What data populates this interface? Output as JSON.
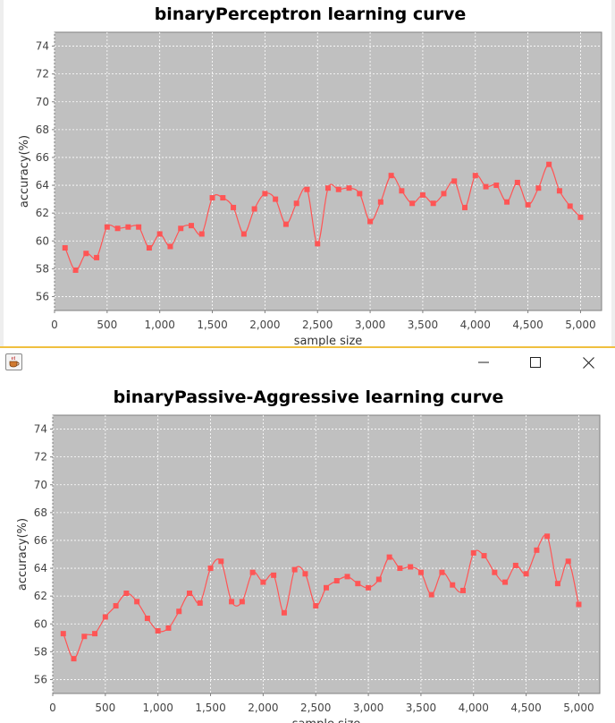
{
  "charts": [
    {
      "chart_data": {
        "type": "line",
        "title": "binaryPerceptron learning curve",
        "xlabel": "sample size",
        "ylabel": "accuracy(%)",
        "xlim": [
          0,
          5200
        ],
        "ylim": [
          55,
          75
        ],
        "xticks": [
          0,
          500,
          1000,
          1500,
          2000,
          2500,
          3000,
          3500,
          4000,
          4500,
          5000
        ],
        "xtick_labels": [
          "0",
          "500",
          "1,000",
          "1,500",
          "2,000",
          "2,500",
          "3,000",
          "3,500",
          "4,000",
          "4,500",
          "5,000"
        ],
        "yticks": [
          56,
          58,
          60,
          62,
          64,
          66,
          68,
          70,
          72,
          74
        ],
        "ytick_labels": [
          "56",
          "58",
          "60",
          "62",
          "64",
          "66",
          "68",
          "70",
          "72",
          "74"
        ],
        "grid": true,
        "plot_background": "#c0c0c0",
        "series": [
          {
            "color": "#ff5555",
            "x": [
              100,
              200,
              300,
              400,
              500,
              600,
              700,
              800,
              900,
              1000,
              1100,
              1200,
              1300,
              1400,
              1500,
              1600,
              1700,
              1800,
              1900,
              2000,
              2100,
              2200,
              2300,
              2400,
              2500,
              2600,
              2700,
              2800,
              2900,
              3000,
              3100,
              3200,
              3300,
              3400,
              3500,
              3600,
              3700,
              3800,
              3900,
              4000,
              4100,
              4200,
              4300,
              4400,
              4500,
              4600,
              4700,
              4800,
              4900,
              5000
            ],
            "y": [
              59.5,
              57.9,
              59.1,
              58.8,
              61.0,
              60.9,
              61.0,
              61.0,
              59.5,
              60.5,
              59.6,
              60.9,
              61.1,
              60.5,
              63.1,
              63.1,
              62.4,
              60.5,
              62.3,
              63.4,
              63.0,
              61.2,
              62.7,
              63.7,
              59.8,
              63.8,
              63.7,
              63.8,
              63.4,
              61.4,
              62.8,
              64.7,
              63.6,
              62.7,
              63.3,
              62.7,
              63.4,
              64.3,
              62.4,
              64.7,
              63.9,
              64.0,
              62.8,
              64.2,
              62.6,
              63.8,
              65.5,
              63.6,
              62.5,
              61.7
            ]
          }
        ]
      }
    },
    {
      "chart_data": {
        "type": "line",
        "title": "binaryPassive-Aggressive learning curve",
        "xlabel": "sample size",
        "ylabel": "accuracy(%)",
        "xlim": [
          0,
          5200
        ],
        "ylim": [
          55,
          75
        ],
        "xticks": [
          0,
          500,
          1000,
          1500,
          2000,
          2500,
          3000,
          3500,
          4000,
          4500,
          5000
        ],
        "xtick_labels": [
          "0",
          "500",
          "1,000",
          "1,500",
          "2,000",
          "2,500",
          "3,000",
          "3,500",
          "4,000",
          "4,500",
          "5,000"
        ],
        "yticks": [
          56,
          58,
          60,
          62,
          64,
          66,
          68,
          70,
          72,
          74
        ],
        "ytick_labels": [
          "56",
          "58",
          "60",
          "62",
          "64",
          "66",
          "68",
          "70",
          "72",
          "74"
        ],
        "grid": true,
        "plot_background": "#c0c0c0",
        "series": [
          {
            "color": "#ff5555",
            "x": [
              100,
              200,
              300,
              400,
              500,
              600,
              700,
              800,
              900,
              1000,
              1100,
              1200,
              1300,
              1400,
              1500,
              1600,
              1700,
              1800,
              1900,
              2000,
              2100,
              2200,
              2300,
              2400,
              2500,
              2600,
              2700,
              2800,
              2900,
              3000,
              3100,
              3200,
              3300,
              3400,
              3500,
              3600,
              3700,
              3800,
              3900,
              4000,
              4100,
              4200,
              4300,
              4400,
              4500,
              4600,
              4700,
              4800,
              4900,
              5000
            ],
            "y": [
              59.3,
              57.5,
              59.1,
              59.3,
              60.5,
              61.3,
              62.2,
              61.6,
              60.4,
              59.5,
              59.7,
              60.9,
              62.2,
              61.5,
              64.0,
              64.5,
              61.6,
              61.6,
              63.7,
              63.0,
              63.5,
              60.8,
              63.9,
              63.6,
              61.3,
              62.6,
              63.1,
              63.4,
              62.9,
              62.6,
              63.2,
              64.8,
              64.0,
              64.1,
              63.7,
              62.1,
              63.7,
              62.8,
              62.4,
              65.1,
              64.9,
              63.7,
              63.0,
              64.2,
              63.6,
              65.3,
              66.3,
              62.9,
              64.5,
              61.4
            ]
          }
        ]
      }
    }
  ],
  "window_controls": {
    "app_icon": "java-coffee-icon",
    "minimize_icon": "minimize-icon",
    "maximize_icon": "maximize-icon",
    "close_icon": "close-icon"
  }
}
